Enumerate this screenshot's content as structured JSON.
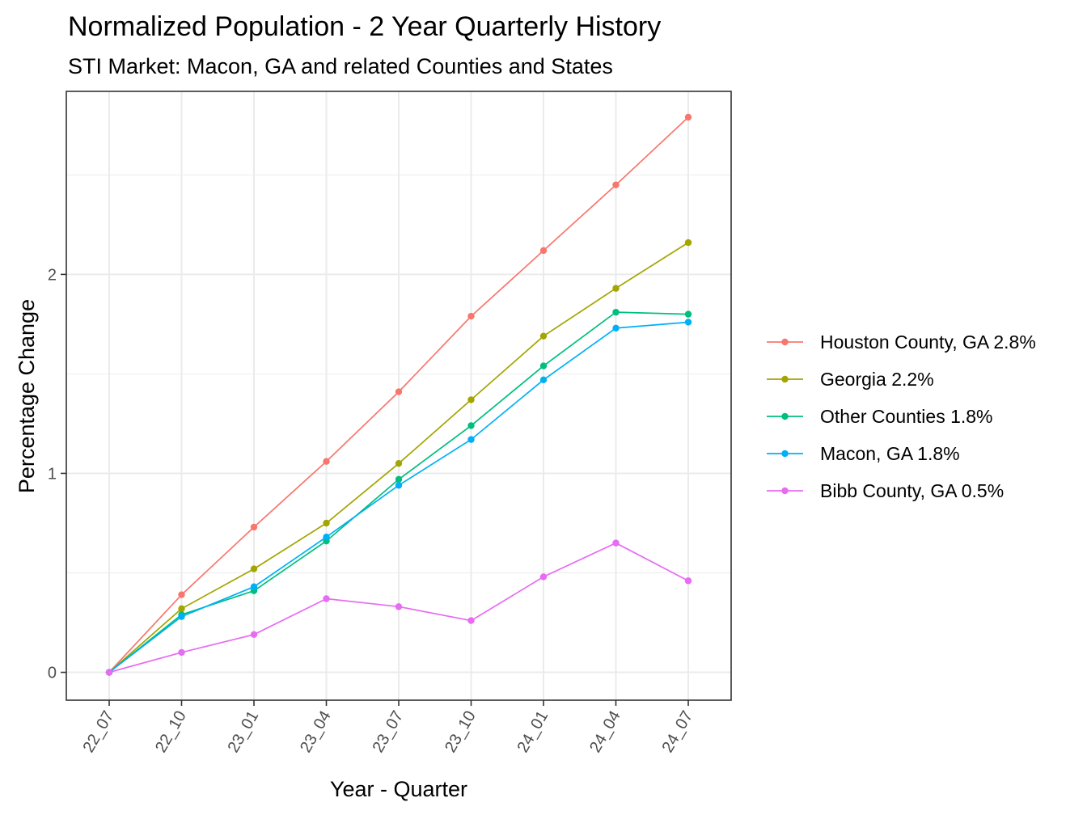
{
  "chart_data": {
    "type": "line",
    "title": "Normalized Population - 2 Year Quarterly History",
    "subtitle": "STI Market: Macon, GA and related Counties and States",
    "xlabel": "Year - Quarter",
    "ylabel": "Percentage Change",
    "categories": [
      "22_07",
      "22_10",
      "23_01",
      "23_04",
      "23_07",
      "23_10",
      "24_01",
      "24_04",
      "24_07"
    ],
    "y_ticks": [
      "0",
      "1",
      "2"
    ],
    "ylim": [
      -0.14,
      2.92
    ],
    "grid": true,
    "legend_position": "right",
    "series": [
      {
        "name": "Houston County, GA 2.8%",
        "color": "#F8766D",
        "values": [
          0,
          0.39,
          0.73,
          1.06,
          1.41,
          1.79,
          2.12,
          2.45,
          2.79
        ]
      },
      {
        "name": "Georgia 2.2%",
        "color": "#A3A500",
        "values": [
          0,
          0.32,
          0.52,
          0.75,
          1.05,
          1.37,
          1.69,
          1.93,
          2.16
        ]
      },
      {
        "name": "Other Counties 1.8%",
        "color": "#00BF7D",
        "values": [
          0,
          0.29,
          0.41,
          0.66,
          0.97,
          1.24,
          1.54,
          1.81,
          1.8
        ]
      },
      {
        "name": "Macon, GA 1.8%",
        "color": "#00B0F6",
        "values": [
          0,
          0.28,
          0.43,
          0.68,
          0.94,
          1.17,
          1.47,
          1.73,
          1.76
        ]
      },
      {
        "name": "Bibb County, GA 0.5%",
        "color": "#E76BF3",
        "values": [
          0,
          0.1,
          0.19,
          0.37,
          0.33,
          0.26,
          0.48,
          0.65,
          0.46
        ]
      }
    ]
  }
}
